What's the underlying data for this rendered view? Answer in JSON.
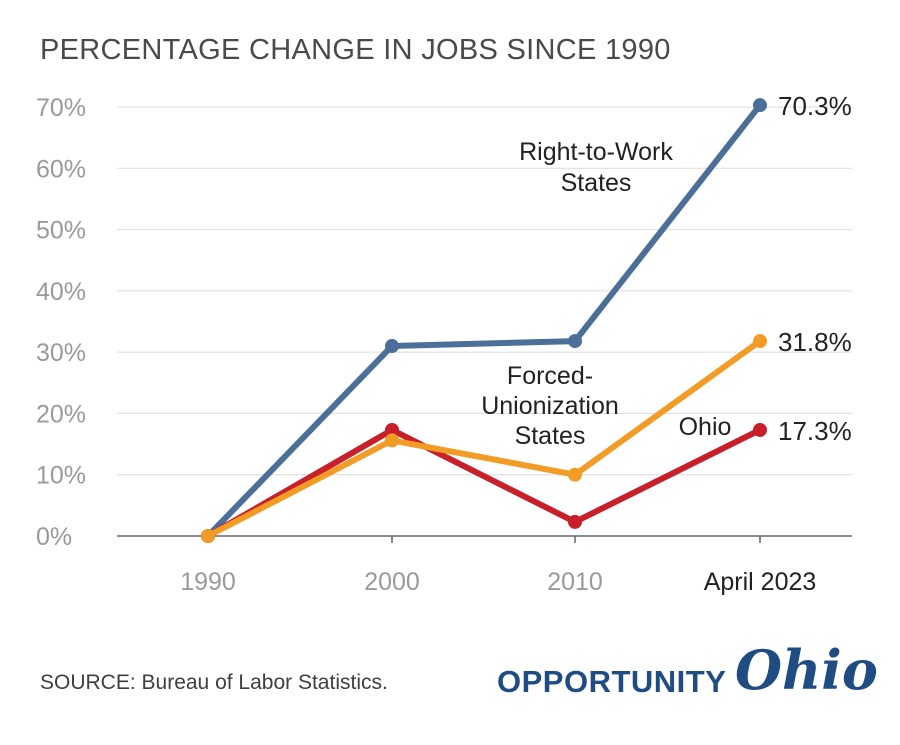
{
  "chart_data": {
    "type": "line",
    "title": "PERCENTAGE CHANGE IN JOBS SINCE 1990",
    "xlabel": "",
    "ylabel": "",
    "categories": [
      "1990",
      "2000",
      "2010",
      "April 2023"
    ],
    "ylim": [
      0,
      70
    ],
    "yticks": [
      0,
      10,
      20,
      30,
      40,
      50,
      60,
      70
    ],
    "yticklabels": [
      "0%",
      "10%",
      "20%",
      "30%",
      "40%",
      "50%",
      "60%",
      "70%"
    ],
    "grid": true,
    "series": [
      {
        "name": "Right-to-Work States",
        "label_lines": [
          "Right-to-Work",
          "States"
        ],
        "color": "#4b6f98",
        "values": [
          0,
          31.0,
          31.8,
          70.3
        ],
        "end_label": "70.3%"
      },
      {
        "name": "Forced-Unionization States",
        "label_lines": [
          "Forced-",
          "Unionization",
          "States"
        ],
        "color": "#f39c25",
        "values": [
          0,
          15.6,
          10.0,
          31.8
        ],
        "end_label": "31.8%"
      },
      {
        "name": "Ohio",
        "label_lines": [
          "Ohio"
        ],
        "color": "#c8202b",
        "values": [
          0,
          17.3,
          2.3,
          17.3
        ],
        "end_label": "17.3%"
      }
    ]
  },
  "source": "SOURCE: Bureau of Labor Statistics.",
  "logo": {
    "word": "OPPORTUNITY",
    "script": "Ohio"
  }
}
